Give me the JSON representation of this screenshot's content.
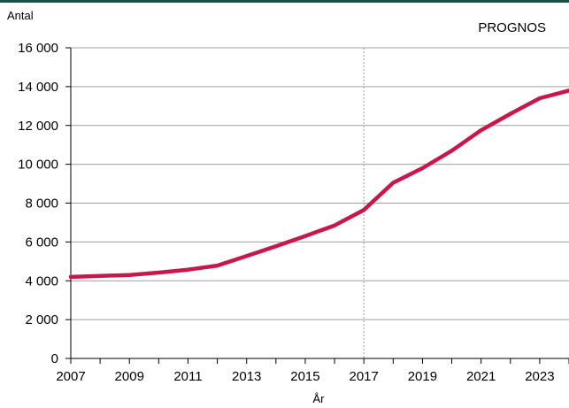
{
  "colors": {
    "top_rule": "#1f4e4a",
    "series_line": "#c8174a",
    "grid": "#a0a0a0",
    "axis": "#000000",
    "prognos_divider": "#a0a0a0"
  },
  "chart_data": {
    "type": "line",
    "title": "",
    "xlabel": "År",
    "ylabel": "Antal",
    "annotation": "PROGNOS",
    "prognos_start_year": 2017,
    "xlim": [
      2007,
      2024
    ],
    "ylim": [
      0,
      16000
    ],
    "grid": true,
    "x_tick_labels": [
      "2007",
      "2009",
      "2011",
      "2013",
      "2015",
      "2017",
      "2019",
      "2021",
      "2023"
    ],
    "y_tick_labels": [
      "0",
      "2 000",
      "4 000",
      "6 000",
      "8 000",
      "10 000",
      "12 000",
      "14 000",
      "16 000"
    ],
    "y_tick_values": [
      0,
      2000,
      4000,
      6000,
      8000,
      10000,
      12000,
      14000,
      16000
    ],
    "x": [
      2007,
      2008,
      2009,
      2010,
      2011,
      2012,
      2013,
      2014,
      2015,
      2016,
      2017,
      2018,
      2019,
      2020,
      2021,
      2022,
      2023,
      2024
    ],
    "series": [
      {
        "values": [
          4200,
          4250,
          4300,
          4420,
          4570,
          4780,
          5280,
          5780,
          6300,
          6850,
          7650,
          9050,
          9800,
          10700,
          11750,
          12600,
          13400,
          13800
        ]
      }
    ]
  }
}
